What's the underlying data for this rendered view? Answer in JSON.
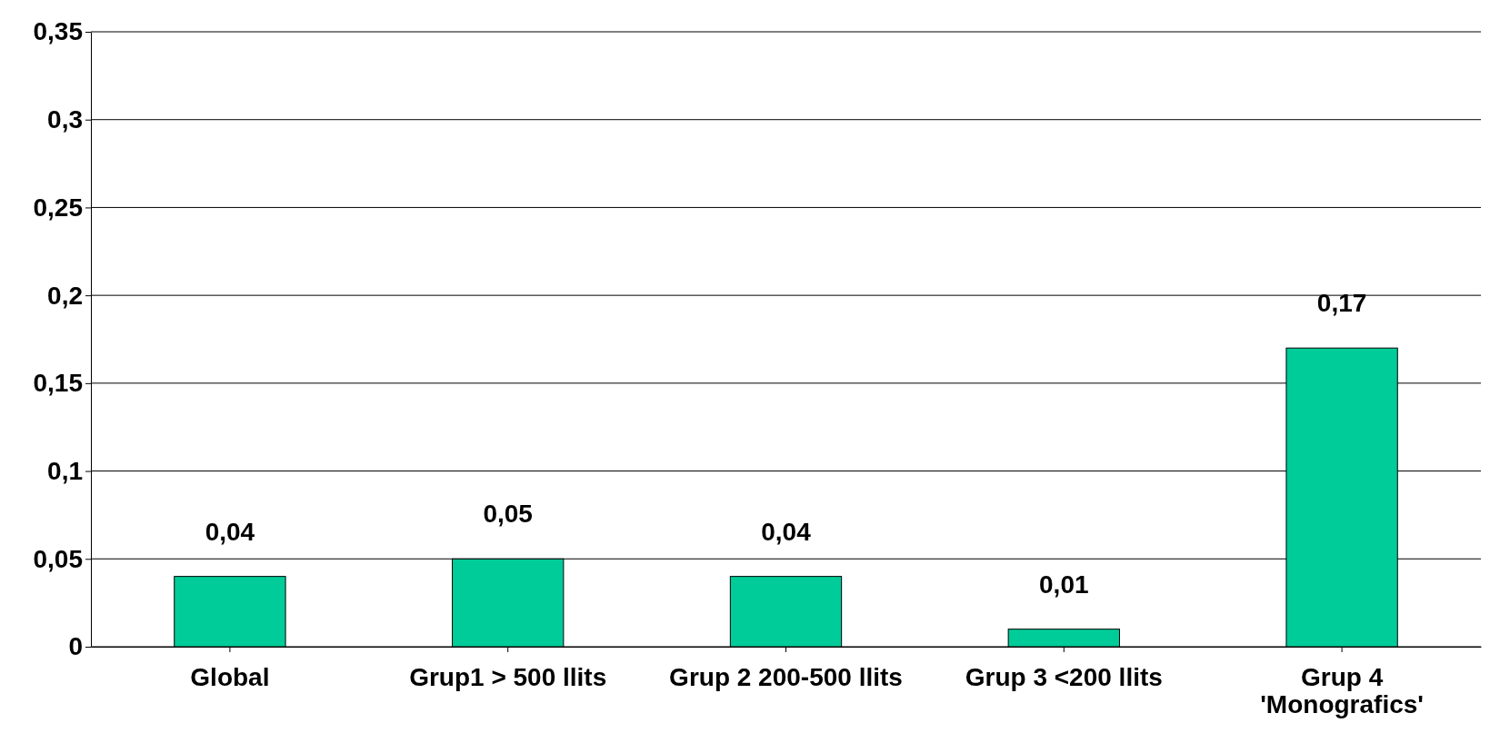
{
  "chart_data": {
    "type": "bar",
    "categories": [
      "Global",
      "Grup1 > 500 llits",
      "Grup 2 200-500 llits",
      "Grup 3 <200 llits",
      "Grup 4 'Monografics'"
    ],
    "values": [
      0.04,
      0.05,
      0.04,
      0.01,
      0.17
    ],
    "value_labels": [
      "0,04",
      "0,05",
      "0,04",
      "0,01",
      "0,17"
    ],
    "color": "#00cc99",
    "ylim": [
      0,
      0.35
    ],
    "yticks": [
      0,
      {
        "value": 0.05,
        "label": "0,05"
      },
      {
        "value": 0.1,
        "label": "0,1"
      },
      {
        "value": 0.15,
        "label": "0,15"
      },
      {
        "value": 0.2,
        "label": "0,2"
      },
      {
        "value": 0.25,
        "label": "0,25"
      },
      {
        "value": 0.3,
        "label": "0,3"
      },
      {
        "value": 0.35,
        "label": "0,35"
      }
    ],
    "grid": "y"
  }
}
